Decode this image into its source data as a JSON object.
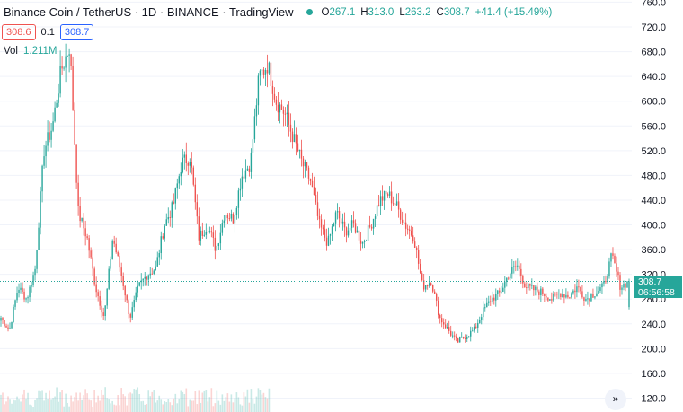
{
  "legend": {
    "title": "Binance Coin / TetherUS · 1D · BINANCE · TradingView",
    "open_label": "O",
    "open": "267.1",
    "high_label": "H",
    "high": "313.0",
    "low_label": "L",
    "low": "263.2",
    "close_label": "C",
    "close": "308.7",
    "change": "+41.4 (+15.49%)",
    "sell_price": "308.6",
    "spread": "0.1",
    "buy_price": "308.7",
    "vol_label": "Vol",
    "vol_value": "1.211M"
  },
  "price_tag": {
    "price": "308.7",
    "countdown": "06:56:58"
  },
  "scroll_button": {
    "glyph": "»"
  },
  "colors": {
    "up": "#26a69a",
    "down": "#ef5350",
    "grid": "#f0f3fa"
  },
  "chart_data": {
    "type": "candlestick",
    "y_axis": {
      "position": "right",
      "ticks": [
        120,
        160,
        200,
        240,
        280,
        320,
        360,
        400,
        440,
        480,
        520,
        560,
        600,
        640,
        680,
        720,
        760
      ],
      "tick_labels": [
        "120.0",
        "160.0",
        "200.0",
        "240.0",
        "280.0",
        "320.0",
        "360.0",
        "400.0",
        "440.0",
        "480.0",
        "520.0",
        "560.0",
        "600.0",
        "640.0",
        "680.0",
        "720.0",
        "760.0"
      ],
      "range": [
        105,
        765
      ]
    },
    "grid": true,
    "last_price": 308.7,
    "approx_close_path": [
      250,
      230,
      300,
      280,
      330,
      520,
      560,
      650,
      690,
      420,
      380,
      300,
      250,
      380,
      320,
      250,
      300,
      320,
      330,
      400,
      430,
      500,
      510,
      380,
      400,
      360,
      420,
      410,
      480,
      500,
      640,
      660,
      600,
      580,
      540,
      500,
      470,
      400,
      370,
      420,
      390,
      400,
      370,
      400,
      440,
      450,
      430,
      400,
      380,
      300,
      310,
      250,
      230,
      210,
      220,
      230,
      260,
      280,
      290,
      320,
      335,
      300,
      295,
      290,
      280,
      290,
      285,
      300,
      280,
      290,
      300,
      350,
      300,
      308.7
    ]
  }
}
